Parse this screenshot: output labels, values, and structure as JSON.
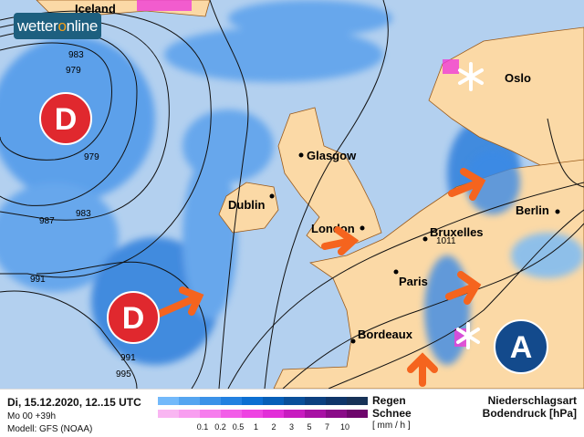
{
  "brand": {
    "logo_text_a": "wetter",
    "logo_text_o": "o",
    "logo_text_b": "nline"
  },
  "map": {
    "cities": [
      {
        "name": "Iceland"
      },
      {
        "name": "Oslo"
      },
      {
        "name": "Glasgow"
      },
      {
        "name": "Dublin"
      },
      {
        "name": "London"
      },
      {
        "name": "Bruxelles"
      },
      {
        "name": "Berlin"
      },
      {
        "name": "Paris"
      },
      {
        "name": "Bordeaux"
      }
    ],
    "isobar_labels": [
      "983",
      "979",
      "979",
      "983",
      "987",
      "991",
      "991",
      "995",
      "1011"
    ],
    "pressure_systems": [
      {
        "label": "D",
        "type": "low"
      },
      {
        "label": "D",
        "type": "low"
      },
      {
        "label": "A",
        "type": "high"
      }
    ],
    "colors": {
      "sea": "#b3d0ef",
      "land": "#fbd9a6",
      "rain": "#3a8ae6",
      "snow": "#f03cd8",
      "arrow": "#f5641e",
      "low": "#e0282e",
      "high": "#134a8c"
    }
  },
  "legend": {
    "date": "Di, 15.12.2020, 12..15 UTC",
    "run": "Mo 00 +39h",
    "model": "Modell: GFS (NOAA)",
    "rain_label": "Regen",
    "snow_label": "Schnee",
    "unit": "[ mm / h ]",
    "ticks": [
      "0.1",
      "0.2",
      "0.5",
      "1",
      "2",
      "3",
      "5",
      "7",
      "10"
    ],
    "rain_colors": [
      "#73b9fa",
      "#55a5f0",
      "#3b92e8",
      "#2381e0",
      "#0d6fd2",
      "#075fb8",
      "#0a4f9a",
      "#0c4080",
      "#0f3569",
      "#173257"
    ],
    "snow_colors": [
      "#f9b6f2",
      "#f89ef0",
      "#f67ded",
      "#f25ee8",
      "#ee44e2",
      "#e22ed8",
      "#c81cc0",
      "#a811a4",
      "#8a0b88",
      "#6e066c"
    ],
    "title1": "Niederschlagsart",
    "title2": "Bodendruck [hPa]"
  }
}
